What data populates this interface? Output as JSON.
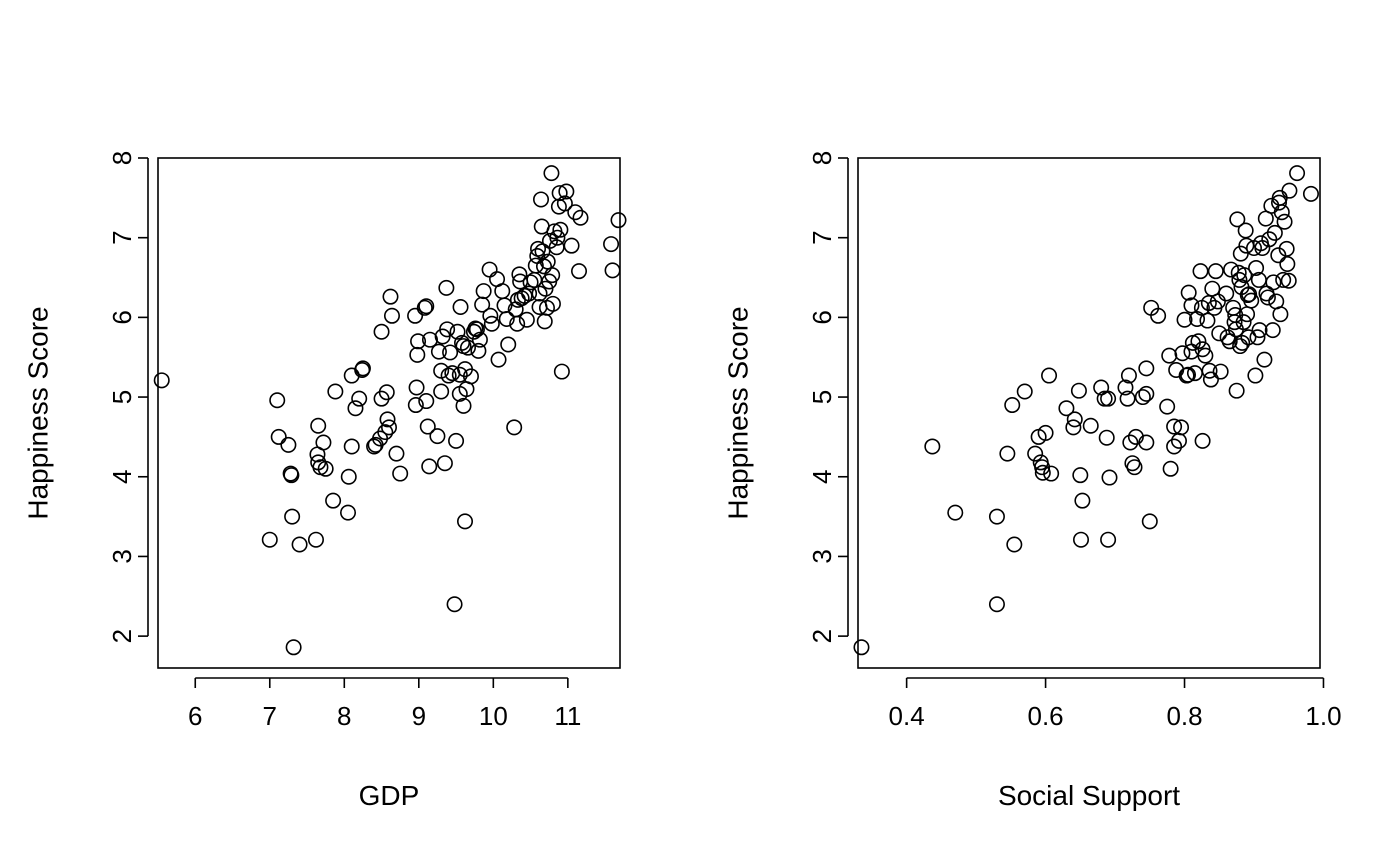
{
  "chart_data": [
    {
      "type": "scatter",
      "xlabel": "GDP",
      "ylabel": "Happiness Score",
      "xlim": [
        5.5,
        11.7
      ],
      "ylim": [
        1.6,
        8.0
      ],
      "xticks": [
        6,
        7,
        8,
        9,
        10,
        11
      ],
      "yticks": [
        2,
        3,
        4,
        5,
        6,
        7,
        8
      ],
      "grid": false,
      "points": [
        [
          5.55,
          5.21
        ],
        [
          7.0,
          3.21
        ],
        [
          7.1,
          4.96
        ],
        [
          7.12,
          4.5
        ],
        [
          7.25,
          4.4
        ],
        [
          7.28,
          4.04
        ],
        [
          7.29,
          4.02
        ],
        [
          7.3,
          3.5
        ],
        [
          7.32,
          1.86
        ],
        [
          7.4,
          3.15
        ],
        [
          7.62,
          3.21
        ],
        [
          7.64,
          4.28
        ],
        [
          7.65,
          4.64
        ],
        [
          7.65,
          4.18
        ],
        [
          7.68,
          4.12
        ],
        [
          7.72,
          4.43
        ],
        [
          7.75,
          4.1
        ],
        [
          7.85,
          3.7
        ],
        [
          7.88,
          5.07
        ],
        [
          8.05,
          3.55
        ],
        [
          8.06,
          4.0
        ],
        [
          8.1,
          5.27
        ],
        [
          8.1,
          4.38
        ],
        [
          8.15,
          4.86
        ],
        [
          8.2,
          4.98
        ],
        [
          8.24,
          5.34
        ],
        [
          8.25,
          5.36
        ],
        [
          8.4,
          4.38
        ],
        [
          8.42,
          4.4
        ],
        [
          8.48,
          4.48
        ],
        [
          8.5,
          5.82
        ],
        [
          8.5,
          4.98
        ],
        [
          8.55,
          4.56
        ],
        [
          8.57,
          5.06
        ],
        [
          8.58,
          4.72
        ],
        [
          8.6,
          4.62
        ],
        [
          8.62,
          6.26
        ],
        [
          8.64,
          6.02
        ],
        [
          8.7,
          4.29
        ],
        [
          8.75,
          4.04
        ],
        [
          8.95,
          6.02
        ],
        [
          8.96,
          4.9
        ],
        [
          8.97,
          5.12
        ],
        [
          8.98,
          5.53
        ],
        [
          8.99,
          5.7
        ],
        [
          9.08,
          6.12
        ],
        [
          9.1,
          6.14
        ],
        [
          9.1,
          4.95
        ],
        [
          9.12,
          4.63
        ],
        [
          9.14,
          4.13
        ],
        [
          9.15,
          5.72
        ],
        [
          9.25,
          4.51
        ],
        [
          9.27,
          5.57
        ],
        [
          9.3,
          5.33
        ],
        [
          9.3,
          5.07
        ],
        [
          9.32,
          5.76
        ],
        [
          9.35,
          4.17
        ],
        [
          9.37,
          6.37
        ],
        [
          9.38,
          5.85
        ],
        [
          9.4,
          5.27
        ],
        [
          9.42,
          5.56
        ],
        [
          9.45,
          5.3
        ],
        [
          9.48,
          2.4
        ],
        [
          9.5,
          4.45
        ],
        [
          9.52,
          5.82
        ],
        [
          9.55,
          5.28
        ],
        [
          9.55,
          5.04
        ],
        [
          9.56,
          6.13
        ],
        [
          9.58,
          5.68
        ],
        [
          9.6,
          4.89
        ],
        [
          9.6,
          5.64
        ],
        [
          9.62,
          3.44
        ],
        [
          9.62,
          5.35
        ],
        [
          9.64,
          5.1
        ],
        [
          9.66,
          5.62
        ],
        [
          9.7,
          5.26
        ],
        [
          9.74,
          5.82
        ],
        [
          9.76,
          5.86
        ],
        [
          9.78,
          5.85
        ],
        [
          9.8,
          5.58
        ],
        [
          9.82,
          5.72
        ],
        [
          9.85,
          6.16
        ],
        [
          9.87,
          6.33
        ],
        [
          9.95,
          6.6
        ],
        [
          9.96,
          6.02
        ],
        [
          9.98,
          5.92
        ],
        [
          10.05,
          6.48
        ],
        [
          10.07,
          5.47
        ],
        [
          10.12,
          6.33
        ],
        [
          10.15,
          6.15
        ],
        [
          10.18,
          5.98
        ],
        [
          10.2,
          5.66
        ],
        [
          10.28,
          4.62
        ],
        [
          10.3,
          6.1
        ],
        [
          10.32,
          5.92
        ],
        [
          10.33,
          6.22
        ],
        [
          10.35,
          6.54
        ],
        [
          10.36,
          6.45
        ],
        [
          10.38,
          6.24
        ],
        [
          10.42,
          6.27
        ],
        [
          10.45,
          5.97
        ],
        [
          10.48,
          6.3
        ],
        [
          10.5,
          6.44
        ],
        [
          10.55,
          6.47
        ],
        [
          10.57,
          6.65
        ],
        [
          10.59,
          6.77
        ],
        [
          10.6,
          6.86
        ],
        [
          10.62,
          6.3
        ],
        [
          10.62,
          6.13
        ],
        [
          10.64,
          7.48
        ],
        [
          10.65,
          7.14
        ],
        [
          10.66,
          6.83
        ],
        [
          10.68,
          6.64
        ],
        [
          10.69,
          5.95
        ],
        [
          10.7,
          6.36
        ],
        [
          10.72,
          6.12
        ],
        [
          10.73,
          6.7
        ],
        [
          10.75,
          6.45
        ],
        [
          10.76,
          6.96
        ],
        [
          10.78,
          7.81
        ],
        [
          10.79,
          6.53
        ],
        [
          10.8,
          6.17
        ],
        [
          10.82,
          7.08
        ],
        [
          10.85,
          6.88
        ],
        [
          10.86,
          7.0
        ],
        [
          10.88,
          7.39
        ],
        [
          10.89,
          7.56
        ],
        [
          10.9,
          7.1
        ],
        [
          10.92,
          5.32
        ],
        [
          10.96,
          7.43
        ],
        [
          10.98,
          7.58
        ],
        [
          11.05,
          6.9
        ],
        [
          11.1,
          7.32
        ],
        [
          11.15,
          6.58
        ],
        [
          11.17,
          7.25
        ],
        [
          11.58,
          6.92
        ],
        [
          11.6,
          6.59
        ],
        [
          11.68,
          7.22
        ]
      ]
    },
    {
      "type": "scatter",
      "xlabel": "Social Support",
      "ylabel": "Happiness Score",
      "xlim": [
        0.33,
        0.995
      ],
      "ylim": [
        1.6,
        8.0
      ],
      "xticks": [
        0.4,
        0.6,
        0.8,
        1.0
      ],
      "xtick_labels": [
        "0.4",
        "0.6",
        "0.8",
        "1.0"
      ],
      "yticks": [
        2,
        3,
        4,
        5,
        6,
        7,
        8
      ],
      "grid": false,
      "points": [
        [
          0.335,
          1.86
        ],
        [
          0.437,
          4.38
        ],
        [
          0.47,
          3.55
        ],
        [
          0.53,
          3.5
        ],
        [
          0.53,
          2.4
        ],
        [
          0.545,
          4.29
        ],
        [
          0.552,
          4.9
        ],
        [
          0.555,
          3.15
        ],
        [
          0.57,
          5.07
        ],
        [
          0.585,
          4.29
        ],
        [
          0.59,
          4.5
        ],
        [
          0.593,
          4.18
        ],
        [
          0.595,
          4.12
        ],
        [
          0.596,
          4.05
        ],
        [
          0.6,
          4.55
        ],
        [
          0.605,
          5.27
        ],
        [
          0.608,
          4.04
        ],
        [
          0.63,
          4.86
        ],
        [
          0.64,
          4.62
        ],
        [
          0.642,
          4.72
        ],
        [
          0.648,
          5.08
        ],
        [
          0.65,
          4.02
        ],
        [
          0.651,
          3.21
        ],
        [
          0.653,
          3.7
        ],
        [
          0.665,
          4.64
        ],
        [
          0.68,
          5.12
        ],
        [
          0.685,
          4.98
        ],
        [
          0.688,
          4.49
        ],
        [
          0.69,
          4.98
        ],
        [
          0.69,
          3.21
        ],
        [
          0.692,
          3.99
        ],
        [
          0.715,
          5.12
        ],
        [
          0.718,
          4.98
        ],
        [
          0.72,
          5.27
        ],
        [
          0.722,
          4.43
        ],
        [
          0.725,
          4.17
        ],
        [
          0.728,
          4.12
        ],
        [
          0.73,
          4.5
        ],
        [
          0.74,
          5.0
        ],
        [
          0.745,
          4.43
        ],
        [
          0.745,
          5.04
        ],
        [
          0.745,
          5.36
        ],
        [
          0.75,
          3.44
        ],
        [
          0.752,
          6.12
        ],
        [
          0.762,
          6.02
        ],
        [
          0.775,
          4.88
        ],
        [
          0.778,
          5.52
        ],
        [
          0.78,
          4.1
        ],
        [
          0.785,
          4.38
        ],
        [
          0.785,
          4.63
        ],
        [
          0.788,
          5.34
        ],
        [
          0.792,
          4.45
        ],
        [
          0.795,
          4.62
        ],
        [
          0.797,
          5.55
        ],
        [
          0.8,
          5.97
        ],
        [
          0.803,
          5.27
        ],
        [
          0.805,
          5.28
        ],
        [
          0.806,
          6.31
        ],
        [
          0.81,
          5.57
        ],
        [
          0.81,
          6.15
        ],
        [
          0.812,
          5.68
        ],
        [
          0.815,
          5.3
        ],
        [
          0.818,
          5.98
        ],
        [
          0.82,
          5.7
        ],
        [
          0.823,
          6.58
        ],
        [
          0.825,
          6.12
        ],
        [
          0.826,
          5.6
        ],
        [
          0.826,
          4.45
        ],
        [
          0.83,
          5.52
        ],
        [
          0.833,
          5.96
        ],
        [
          0.835,
          6.18
        ],
        [
          0.836,
          5.33
        ],
        [
          0.838,
          5.22
        ],
        [
          0.84,
          6.36
        ],
        [
          0.843,
          6.12
        ],
        [
          0.845,
          6.58
        ],
        [
          0.848,
          6.2
        ],
        [
          0.85,
          5.8
        ],
        [
          0.852,
          5.32
        ],
        [
          0.86,
          6.3
        ],
        [
          0.862,
          5.75
        ],
        [
          0.865,
          5.7
        ],
        [
          0.867,
          6.6
        ],
        [
          0.87,
          6.12
        ],
        [
          0.872,
          5.94
        ],
        [
          0.873,
          6.03
        ],
        [
          0.874,
          5.85
        ],
        [
          0.875,
          5.08
        ],
        [
          0.876,
          7.23
        ],
        [
          0.878,
          6.56
        ],
        [
          0.879,
          6.47
        ],
        [
          0.88,
          5.64
        ],
        [
          0.881,
          6.8
        ],
        [
          0.882,
          6.38
        ],
        [
          0.883,
          5.68
        ],
        [
          0.885,
          5.94
        ],
        [
          0.886,
          6.53
        ],
        [
          0.888,
          7.09
        ],
        [
          0.889,
          6.9
        ],
        [
          0.89,
          6.04
        ],
        [
          0.891,
          6.28
        ],
        [
          0.892,
          5.75
        ],
        [
          0.893,
          6.29
        ],
        [
          0.896,
          6.21
        ],
        [
          0.9,
          6.87
        ],
        [
          0.902,
          5.27
        ],
        [
          0.903,
          6.62
        ],
        [
          0.905,
          5.75
        ],
        [
          0.907,
          6.47
        ],
        [
          0.908,
          5.84
        ],
        [
          0.91,
          6.93
        ],
        [
          0.912,
          6.87
        ],
        [
          0.915,
          5.47
        ],
        [
          0.917,
          7.24
        ],
        [
          0.918,
          6.3
        ],
        [
          0.92,
          6.25
        ],
        [
          0.922,
          6.98
        ],
        [
          0.925,
          7.4
        ],
        [
          0.927,
          5.84
        ],
        [
          0.928,
          6.44
        ],
        [
          0.93,
          7.06
        ],
        [
          0.932,
          6.2
        ],
        [
          0.935,
          6.78
        ],
        [
          0.936,
          7.44
        ],
        [
          0.937,
          7.5
        ],
        [
          0.938,
          6.04
        ],
        [
          0.94,
          7.32
        ],
        [
          0.942,
          6.47
        ],
        [
          0.944,
          7.2
        ],
        [
          0.947,
          6.86
        ],
        [
          0.948,
          6.67
        ],
        [
          0.95,
          6.46
        ],
        [
          0.951,
          7.59
        ],
        [
          0.962,
          7.81
        ],
        [
          0.982,
          7.55
        ]
      ]
    }
  ]
}
